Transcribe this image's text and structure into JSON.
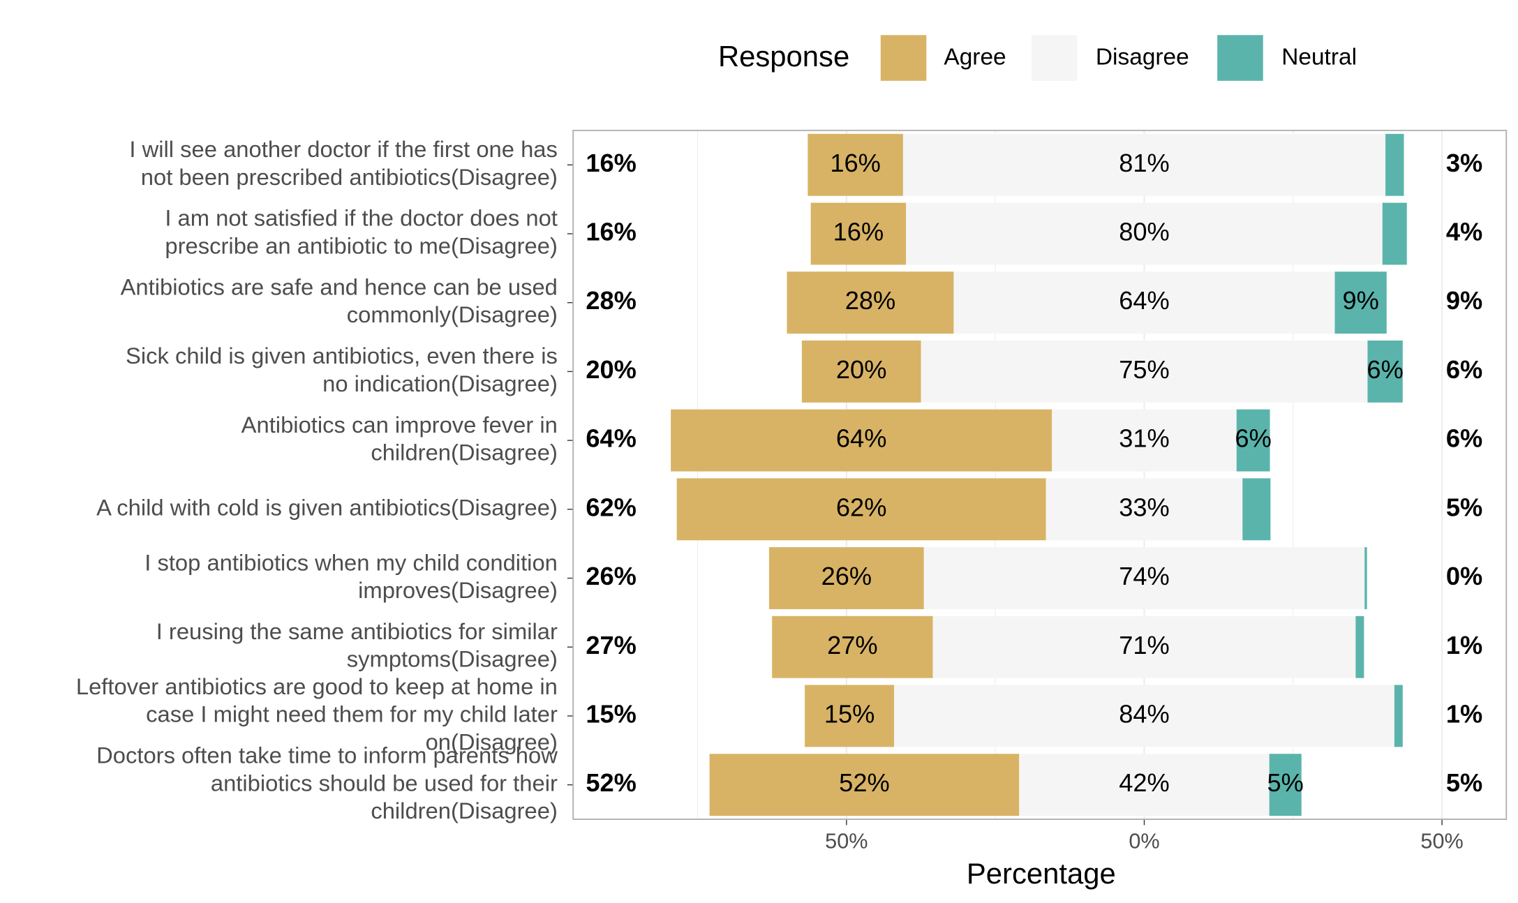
{
  "chart_data": {
    "type": "diverging-bar",
    "legend_title": "Response",
    "x_label": "Percentage",
    "categories": [
      [
        "I will see another doctor if the first one has",
        "not been prescribed antibiotics(Disagree)"
      ],
      [
        "I am not satisfied if the doctor does not",
        "prescribe an antibiotic to me(Disagree)"
      ],
      [
        "Antibiotics are safe and hence can be used",
        "commonly(Disagree)"
      ],
      [
        "Sick child is given antibiotics, even there is",
        "no indication(Disagree)"
      ],
      [
        "Antibiotics can improve fever in",
        "children(Disagree)"
      ],
      [
        "A child with cold is given antibiotics(Disagree)"
      ],
      [
        "I stop antibiotics when my child condition",
        "improves(Disagree)"
      ],
      [
        "I reusing the same antibiotics for similar",
        "symptoms(Disagree)"
      ],
      [
        "Leftover antibiotics are good to keep at home in",
        "case I might need them for my child later",
        "on(Disagree)"
      ],
      [
        "Doctors often take time to inform parents how",
        "antibiotics should be used for their",
        "children(Disagree)"
      ]
    ],
    "series": [
      {
        "name": "Agree",
        "color": "#d8b365",
        "values": [
          16,
          16,
          28,
          20,
          64,
          62,
          26,
          27,
          15,
          52
        ],
        "value_labels": [
          "16%",
          "16%",
          "28%",
          "20%",
          "64%",
          "62%",
          "26%",
          "27%",
          "15%",
          "52%"
        ]
      },
      {
        "name": "Disagree",
        "color": "#f5f5f5",
        "values": [
          81,
          80,
          64,
          75,
          31,
          33,
          74,
          71,
          84,
          42
        ],
        "value_labels": [
          "81%",
          "80%",
          "64%",
          "75%",
          "31%",
          "33%",
          "74%",
          "71%",
          "84%",
          "42%"
        ]
      },
      {
        "name": "Neutral",
        "color": "#5ab4ac",
        "values": [
          3.1,
          4.1,
          8.7,
          5.9,
          5.6,
          4.7,
          0.4,
          1.4,
          1.4,
          5.4
        ],
        "value_labels": [
          null,
          null,
          "9%",
          "6%",
          "6%",
          null,
          null,
          null,
          null,
          "5%"
        ]
      }
    ],
    "outside_labels": {
      "left": [
        "16%",
        "16%",
        "28%",
        "20%",
        "64%",
        "62%",
        "26%",
        "27%",
        "15%",
        "52%"
      ],
      "right": [
        "3%",
        "4%",
        "9%",
        "6%",
        "6%",
        "5%",
        "0%",
        "1%",
        "1%",
        "5%"
      ]
    },
    "xlim": [
      -95.9,
      60.8
    ],
    "xticks": [
      {
        "value": -50,
        "label": "50%"
      },
      {
        "value": 0,
        "label": "0%"
      },
      {
        "value": 50,
        "label": "50%"
      }
    ],
    "minor_xticks": [
      -75,
      -25,
      25
    ],
    "grid": true
  }
}
